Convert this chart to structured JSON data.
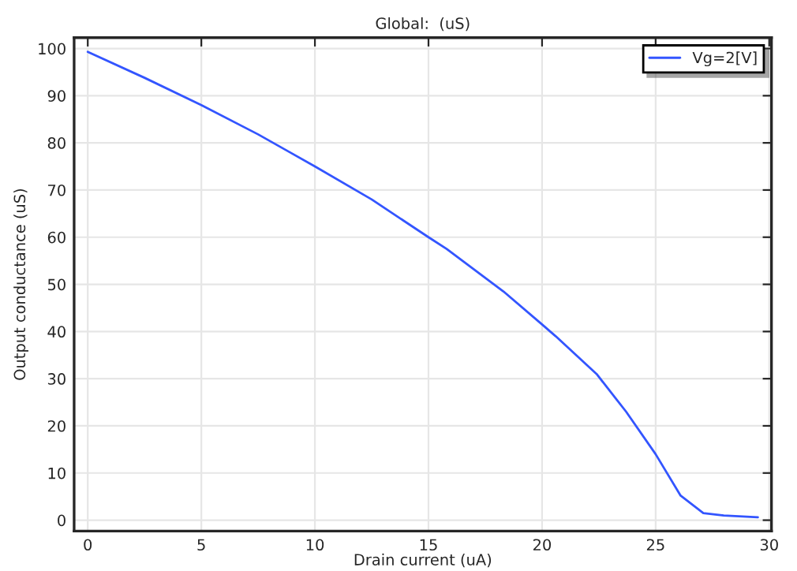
{
  "chart_data": {
    "type": "line",
    "title": "Global:  (uS)",
    "xlabel": "Drain current (uA)",
    "ylabel": "Output conductance (uS)",
    "xlim": [
      -0.6,
      30.1
    ],
    "ylim": [
      -2.3,
      102.3
    ],
    "xticks": [
      0,
      5,
      10,
      15,
      20,
      25,
      30
    ],
    "yticks": [
      0,
      10,
      20,
      30,
      40,
      50,
      60,
      70,
      80,
      90,
      100
    ],
    "grid": true,
    "legend": "top right",
    "marker": "none",
    "line_style": "solid",
    "series": [
      {
        "name": "Vg=2[V]",
        "color": "#3355ff",
        "x": [
          0,
          2.5,
          5,
          7.5,
          8.9,
          10,
          12.5,
          15,
          15.8,
          18.3,
          20,
          20.6,
          22.4,
          23.7,
          25,
          26.1,
          27.1,
          28,
          29.5
        ],
        "values": [
          99.3,
          93.8,
          88,
          81.8,
          78,
          75,
          68,
          60,
          57.5,
          48.5,
          41.5,
          39,
          31,
          23,
          14,
          5.2,
          1.5,
          1.0,
          0.6
        ]
      }
    ]
  }
}
